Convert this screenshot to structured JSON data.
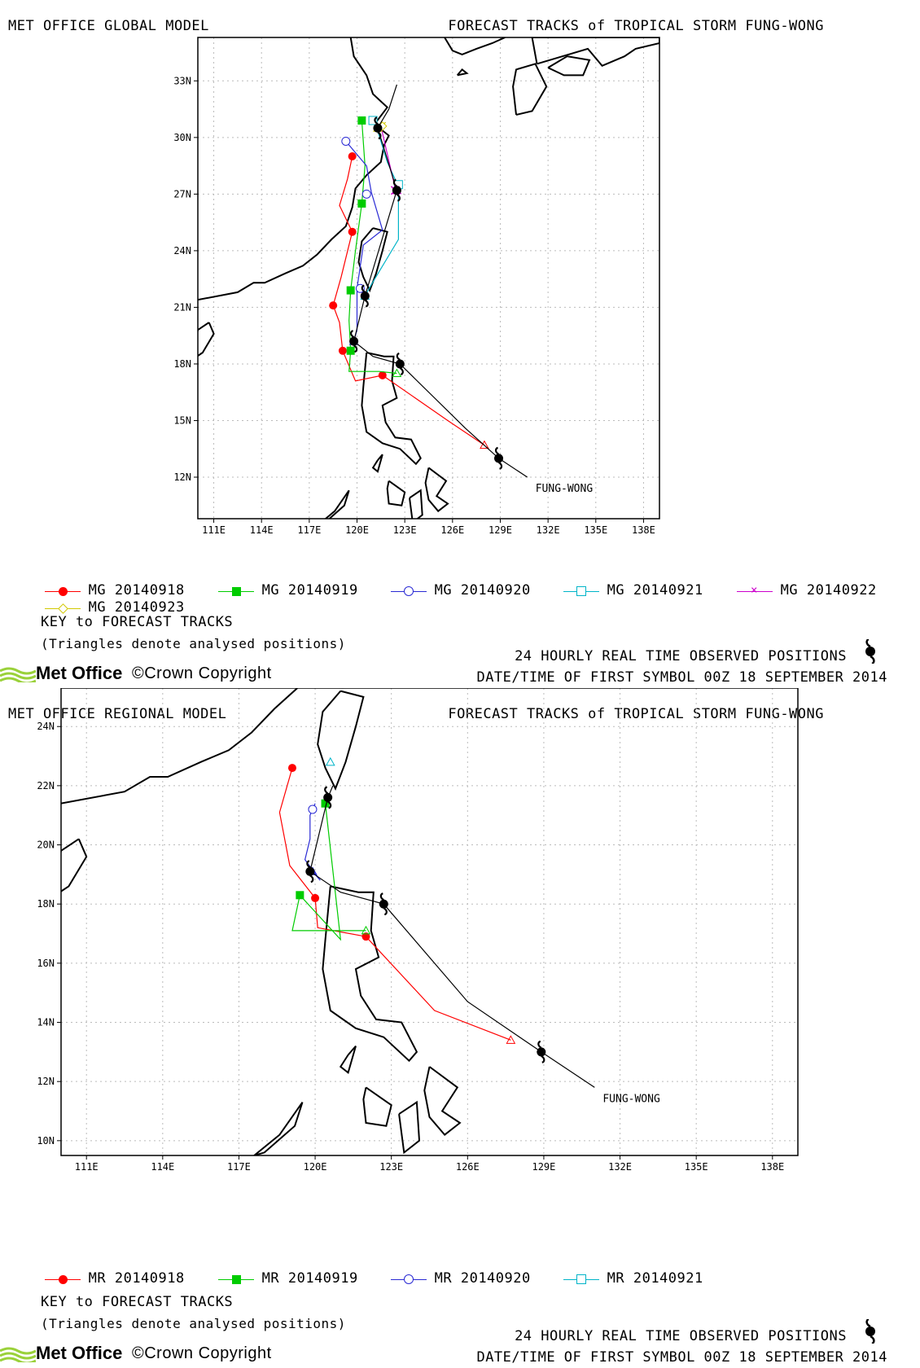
{
  "panels": [
    {
      "id": "global",
      "model_title": "MET OFFICE GLOBAL MODEL",
      "storm_title": "FORECAST TRACKS of TROPICAL STORM FUNG-WONG",
      "storm_label": "FUNG-WONG",
      "lon_ticks": [
        "111E",
        "114E",
        "117E",
        "120E",
        "123E",
        "126E",
        "129E",
        "132E",
        "135E",
        "138E"
      ],
      "lat_ticks": [
        "12N",
        "15N",
        "18N",
        "21N",
        "24N",
        "27N",
        "30N",
        "33N"
      ],
      "extent": {
        "lon": [
          110,
          139
        ],
        "lat": [
          9.8,
          35.3
        ]
      },
      "legend": [
        {
          "label": "MG 20140918",
          "color": "#ff0000",
          "marker": "dot"
        },
        {
          "label": "MG 20140919",
          "color": "#00cc00",
          "marker": "square"
        },
        {
          "label": "MG 20140920",
          "color": "#2a2ad4",
          "marker": "circle"
        },
        {
          "label": "MG 20140921",
          "color": "#00b4c8",
          "marker": "open-square"
        },
        {
          "label": "MG 20140922",
          "color": "#cc00cc",
          "marker": "x"
        },
        {
          "label": "MG 20140923",
          "color": "#d2c800",
          "marker": "diamond"
        }
      ],
      "key_title": "KEY to FORECAST TRACKS",
      "key_note": "(Triangles denote analysed positions)",
      "observed_label": "24 HOURLY REAL TIME OBSERVED POSITIONS",
      "first_symbol": "DATE/TIME OF FIRST SYMBOL 00Z 18 SEPTEMBER 2014",
      "logo_text": "Met Office",
      "copyright": "©Crown Copyright",
      "observed_track": [
        [
          130.7,
          12.0
        ],
        [
          128.9,
          13.0
        ],
        [
          126.8,
          14.6
        ],
        [
          122.7,
          18.0
        ],
        [
          121.0,
          18.4
        ],
        [
          119.8,
          19.2
        ],
        [
          120.5,
          21.6
        ],
        [
          122.5,
          27.2
        ],
        [
          121.3,
          30.5
        ],
        [
          122.0,
          31.5
        ],
        [
          122.5,
          32.8
        ]
      ],
      "observed_symbols": [
        [
          128.9,
          13.0
        ],
        [
          122.7,
          18.0
        ],
        [
          119.8,
          19.2
        ],
        [
          120.5,
          21.6
        ],
        [
          122.5,
          27.2
        ],
        [
          121.3,
          30.5
        ]
      ],
      "forecast_tracks": [
        {
          "color": "#ff0000",
          "marker": "dot",
          "analysed": [
            128.0,
            13.7
          ],
          "points": [
            [
              125.7,
              15.0
            ],
            [
              121.6,
              17.4
            ],
            [
              119.9,
              17.1
            ],
            [
              119.1,
              18.7
            ],
            [
              118.9,
              20.2
            ],
            [
              118.5,
              21.1
            ],
            [
              119.0,
              22.6
            ],
            [
              119.7,
              25.0
            ],
            [
              118.9,
              26.4
            ],
            [
              119.4,
              27.8
            ],
            [
              119.7,
              29.0
            ]
          ],
          "markers": [
            [
              121.6,
              17.4
            ],
            [
              119.1,
              18.7
            ],
            [
              118.5,
              21.1
            ],
            [
              119.7,
              25.0
            ],
            [
              119.7,
              29.0
            ]
          ]
        },
        {
          "color": "#00cc00",
          "marker": "square",
          "analysed": [
            122.5,
            17.5
          ],
          "points": [
            [
              121.4,
              17.6
            ],
            [
              119.5,
              17.6
            ],
            [
              119.6,
              18.7
            ],
            [
              119.5,
              20.3
            ],
            [
              119.6,
              21.9
            ],
            [
              119.9,
              24.0
            ],
            [
              120.3,
              26.5
            ],
            [
              120.5,
              28.5
            ],
            [
              120.3,
              30.9
            ]
          ],
          "markers": [
            [
              119.6,
              18.7
            ],
            [
              119.6,
              21.9
            ],
            [
              120.3,
              26.5
            ],
            [
              120.3,
              30.9
            ]
          ]
        },
        {
          "color": "#2a2ad4",
          "marker": "circle",
          "analysed": [
            119.8,
            19.2
          ],
          "points": [
            [
              120.0,
              19.8
            ],
            [
              120.0,
              22.0
            ],
            [
              120.4,
              24.3
            ],
            [
              121.6,
              25.1
            ],
            [
              120.9,
              27.1
            ],
            [
              120.6,
              28.5
            ],
            [
              119.3,
              29.8
            ]
          ],
          "markers": [
            [
              120.2,
              22.0
            ],
            [
              120.6,
              27.0
            ],
            [
              119.3,
              29.8
            ]
          ]
        },
        {
          "color": "#00b4c8",
          "marker": "open-square",
          "analysed": [
            120.5,
            21.6
          ],
          "points": [
            [
              120.9,
              22.2
            ],
            [
              122.6,
              24.6
            ],
            [
              122.6,
              27.4
            ],
            [
              121.9,
              28.7
            ],
            [
              121.1,
              30.9
            ]
          ],
          "markers": [
            [
              122.6,
              27.5
            ],
            [
              121.0,
              30.9
            ]
          ]
        },
        {
          "color": "#cc00cc",
          "marker": "x",
          "analysed": [
            122.5,
            27.2
          ],
          "points": [
            [
              122.4,
              27.3
            ],
            [
              121.5,
              30.6
            ]
          ],
          "markers": [
            [
              122.4,
              27.2
            ]
          ]
        },
        {
          "color": "#d2c800",
          "marker": "diamond",
          "analysed": [
            121.3,
            30.5
          ],
          "points": [
            [
              121.8,
              30.8
            ]
          ],
          "markers": [
            [
              121.6,
              30.6
            ]
          ]
        }
      ]
    },
    {
      "id": "regional",
      "model_title": "MET OFFICE REGIONAL MODEL",
      "storm_title": "FORECAST TRACKS of TROPICAL STORM FUNG-WONG",
      "storm_label": "FUNG-WONG",
      "lon_ticks": [
        "111E",
        "114E",
        "117E",
        "120E",
        "123E",
        "126E",
        "129E",
        "132E",
        "135E",
        "138E"
      ],
      "lat_ticks": [
        "10N",
        "12N",
        "14N",
        "16N",
        "18N",
        "20N",
        "22N",
        "24N"
      ],
      "extent": {
        "lon": [
          110,
          139
        ],
        "lat": [
          9.5,
          25.3
        ]
      },
      "legend": [
        {
          "label": "MR 20140918",
          "color": "#ff0000",
          "marker": "dot"
        },
        {
          "label": "MR 20140919",
          "color": "#00cc00",
          "marker": "square"
        },
        {
          "label": "MR 20140920",
          "color": "#2a2ad4",
          "marker": "circle"
        },
        {
          "label": "MR 20140921",
          "color": "#00b4c8",
          "marker": "open-square"
        }
      ],
      "key_title": "KEY to FORECAST TRACKS",
      "key_note": "(Triangles denote analysed positions)",
      "observed_label": "24 HOURLY REAL TIME OBSERVED POSITIONS",
      "first_symbol": "DATE/TIME OF FIRST SYMBOL 00Z 18 SEPTEMBER 2014",
      "logo_text": "Met Office",
      "copyright": "©Crown Copyright",
      "observed_track": [
        [
          131.0,
          11.8
        ],
        [
          128.9,
          13.0
        ],
        [
          126.0,
          14.7
        ],
        [
          122.7,
          18.0
        ],
        [
          121.0,
          18.4
        ],
        [
          119.8,
          19.1
        ],
        [
          120.5,
          21.6
        ],
        [
          120.7,
          22.0
        ]
      ],
      "observed_symbols": [
        [
          128.9,
          13.0
        ],
        [
          122.7,
          18.0
        ],
        [
          119.8,
          19.1
        ],
        [
          120.5,
          21.6
        ]
      ],
      "forecast_tracks": [
        {
          "color": "#ff0000",
          "marker": "dot",
          "analysed": [
            127.7,
            13.4
          ],
          "points": [
            [
              124.7,
              14.4
            ],
            [
              122.0,
              16.9
            ],
            [
              120.1,
              17.2
            ],
            [
              120.0,
              18.2
            ],
            [
              119.0,
              19.3
            ],
            [
              118.6,
              21.1
            ],
            [
              119.1,
              22.6
            ]
          ],
          "markers": [
            [
              122.0,
              16.9
            ],
            [
              120.0,
              18.2
            ],
            [
              119.1,
              22.6
            ]
          ]
        },
        {
          "color": "#00cc00",
          "marker": "square",
          "analysed": [
            122.0,
            17.1
          ],
          "points": [
            [
              119.1,
              17.1
            ],
            [
              119.4,
              18.3
            ],
            [
              121.0,
              16.8
            ],
            [
              120.4,
              21.4
            ],
            [
              120.5,
              21.6
            ]
          ],
          "markers": [
            [
              119.4,
              18.3
            ],
            [
              120.4,
              21.4
            ]
          ]
        },
        {
          "color": "#2a2ad4",
          "marker": "circle",
          "analysed": [
            119.9,
            19.1
          ],
          "points": [
            [
              120.2,
              18.8
            ],
            [
              119.6,
              19.5
            ],
            [
              119.8,
              20.2
            ],
            [
              119.8,
              21.0
            ],
            [
              120.0,
              21.4
            ]
          ],
          "markers": [
            [
              119.9,
              21.2
            ]
          ]
        },
        {
          "color": "#00b4c8",
          "marker": "open-square",
          "analysed": [
            120.6,
            22.8
          ],
          "points": [],
          "markers": []
        }
      ]
    }
  ]
}
